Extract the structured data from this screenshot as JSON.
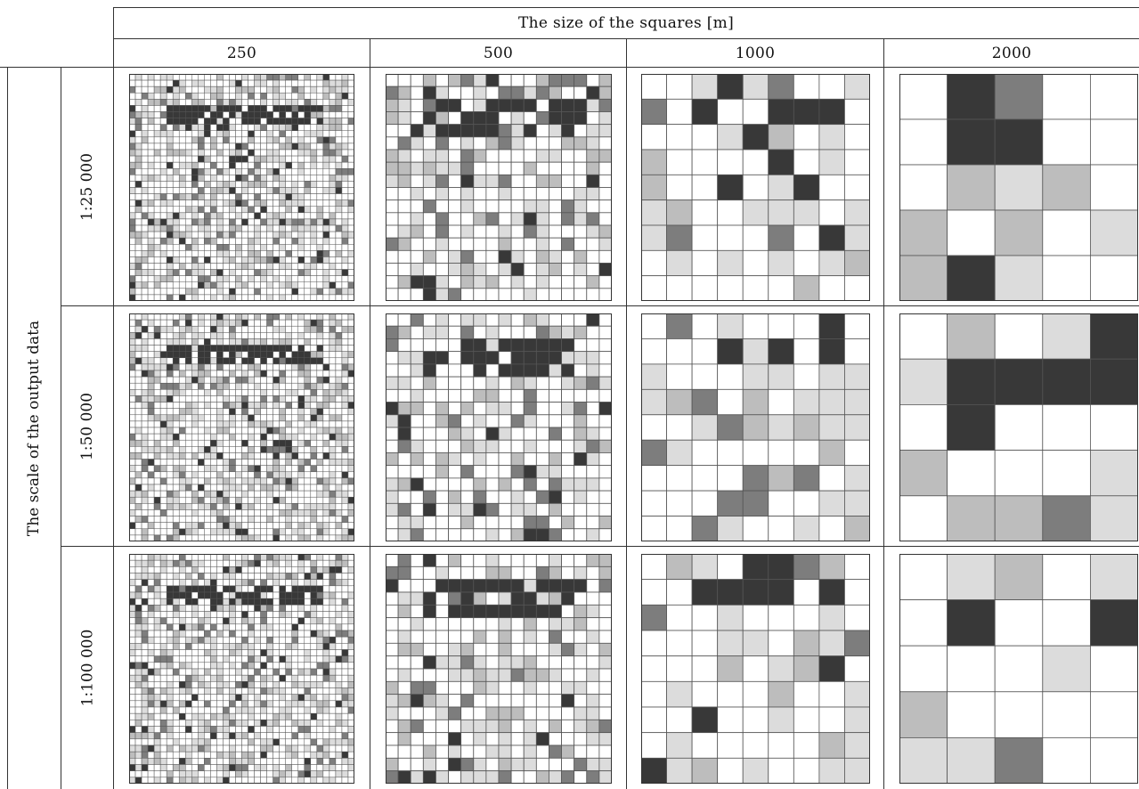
{
  "header": {
    "title": "The size of the squares [m]",
    "columns": [
      "250",
      "500",
      "1000",
      "2000"
    ]
  },
  "row_axis": {
    "title": "The scale of the output data",
    "rows": [
      "1:25 000",
      "1:50 000",
      "1:100 000"
    ]
  },
  "colors": {
    "levels": [
      "#ffffff",
      "#dcdcdc",
      "#bdbdbd",
      "#7d7d7d",
      "#383838"
    ],
    "grid": "#555555",
    "border": "#333333"
  },
  "grid_divisions": [
    36,
    18,
    9,
    5
  ]
}
